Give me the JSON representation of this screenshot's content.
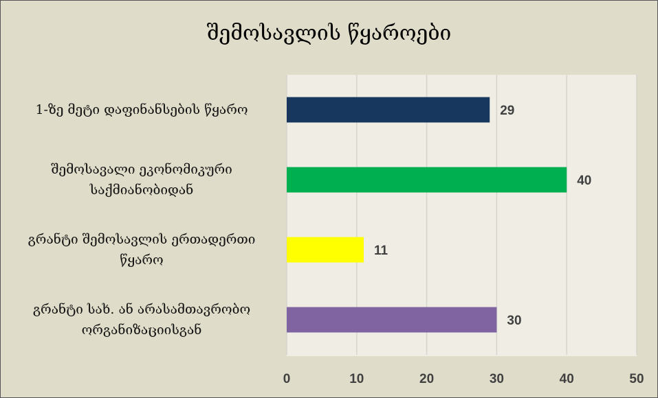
{
  "chart_data": {
    "type": "bar",
    "orientation": "horizontal",
    "title": "შემოსავლის წყაროები",
    "categories": [
      "1-ზე მეტი დაფინანსების წყარო",
      "შემოსავალი ეკონომიკური საქმიანობიდან",
      "გრანტი შემოსავლის ერთადერთი წყარო",
      "გრანტი სახ. ან არასამთავრობო ორგანიზაციისგან"
    ],
    "values": [
      29,
      40,
      11,
      30
    ],
    "colors": [
      "#17375e",
      "#00b050",
      "#ffff00",
      "#8064a2"
    ],
    "xlim": [
      0,
      50
    ],
    "xticks": [
      0,
      10,
      20,
      30,
      40,
      50
    ],
    "grid": true
  }
}
